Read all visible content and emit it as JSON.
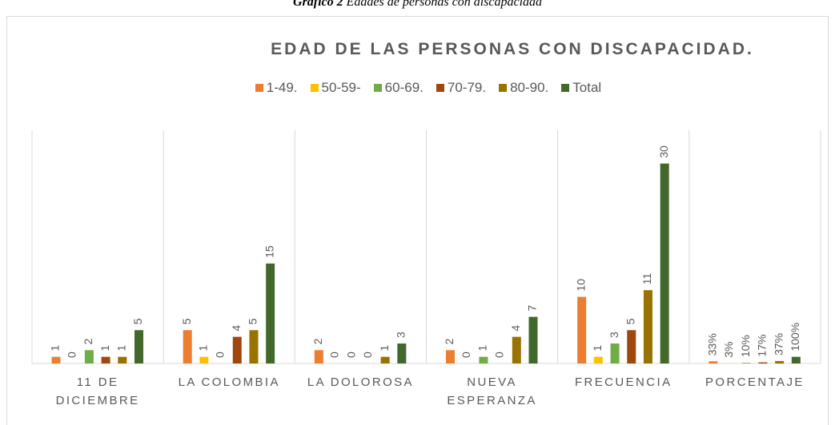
{
  "caption_label": "Gráfico 2",
  "caption": "Edades de personas con discapacidad",
  "chart_data": {
    "type": "bar",
    "title": "EDAD DE LAS PERSONAS CON DISCAPACIDAD.",
    "categories": [
      "11 DE DICIEMBRE",
      "LA COLOMBIA",
      "LA DOLOROSA",
      "NUEVA ESPERANZA",
      "FRECUENCIA",
      "PORCENTAJE"
    ],
    "series": [
      {
        "name": "1-49.",
        "color": "#ED7D31",
        "values": [
          1,
          5,
          2,
          2,
          10,
          0.33
        ],
        "value_labels": [
          "1",
          "5",
          "2",
          "2",
          "10",
          "33%"
        ]
      },
      {
        "name": "50-59-",
        "color": "#FFC000",
        "values": [
          0,
          1,
          0,
          0,
          1,
          0.03
        ],
        "value_labels": [
          "0",
          "1",
          "0",
          "0",
          "1",
          "3%"
        ]
      },
      {
        "name": "60-69.",
        "color": "#70AD47",
        "values": [
          2,
          0,
          0,
          1,
          3,
          0.1
        ],
        "value_labels": [
          "2",
          "0",
          "0",
          "1",
          "3",
          "10%"
        ]
      },
      {
        "name": "70-79.",
        "color": "#9E480E",
        "values": [
          1,
          4,
          0,
          0,
          5,
          0.17
        ],
        "value_labels": [
          "1",
          "4",
          "0",
          "0",
          "5",
          "17%"
        ]
      },
      {
        "name": "80-90.",
        "color": "#997300",
        "values": [
          1,
          5,
          1,
          4,
          11,
          0.37
        ],
        "value_labels": [
          "1",
          "5",
          "1",
          "4",
          "11",
          "37%"
        ]
      },
      {
        "name": "Total",
        "color": "#43682B",
        "values": [
          5,
          15,
          3,
          7,
          30,
          1.0
        ],
        "value_labels": [
          "5",
          "15",
          "3",
          "7",
          "30",
          "100%"
        ]
      }
    ],
    "ylim": [
      0,
      35
    ],
    "legend": "top"
  }
}
